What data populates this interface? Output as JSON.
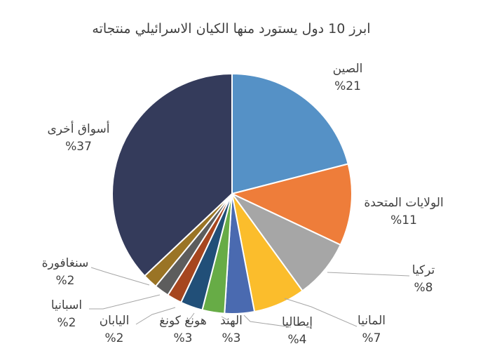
{
  "chart_data": {
    "type": "pie",
    "title": "ابرز 10 دول يستورد منها الكيان الاسرائيلي منتجاته",
    "slices": [
      {
        "label": "الصين",
        "value_text": "%21",
        "value": 21,
        "color": "#5591c6"
      },
      {
        "label": "الولايات المتحدة",
        "value_text": "%11",
        "value": 11,
        "color": "#ee7d3a"
      },
      {
        "label": "تركيا",
        "value_text": "%8",
        "value": 8,
        "color": "#a6a6a6"
      },
      {
        "label": "المانيا",
        "value_text": "%7",
        "value": 7,
        "color": "#fbbd2c"
      },
      {
        "label": "إيطاليا",
        "value_text": "%4",
        "value": 4,
        "color": "#4a6ab0"
      },
      {
        "label": "الهند",
        "value_text": "%3",
        "value": 3,
        "color": "#67ac46"
      },
      {
        "label": "هونغ كونغ",
        "value_text": "%3",
        "value": 3,
        "color": "#214f78"
      },
      {
        "label": "اليابان",
        "value_text": "%2",
        "value": 2,
        "color": "#a6461f"
      },
      {
        "label": "اسبانيا",
        "value_text": "%2",
        "value": 2,
        "color": "#5d5d5d"
      },
      {
        "label": "سنغافورة",
        "value_text": "%2",
        "value": 2,
        "color": "#9a7425"
      },
      {
        "label": "أسواق أخرى",
        "value_text": "%37",
        "value": 37,
        "color": "#343b5b"
      }
    ]
  }
}
